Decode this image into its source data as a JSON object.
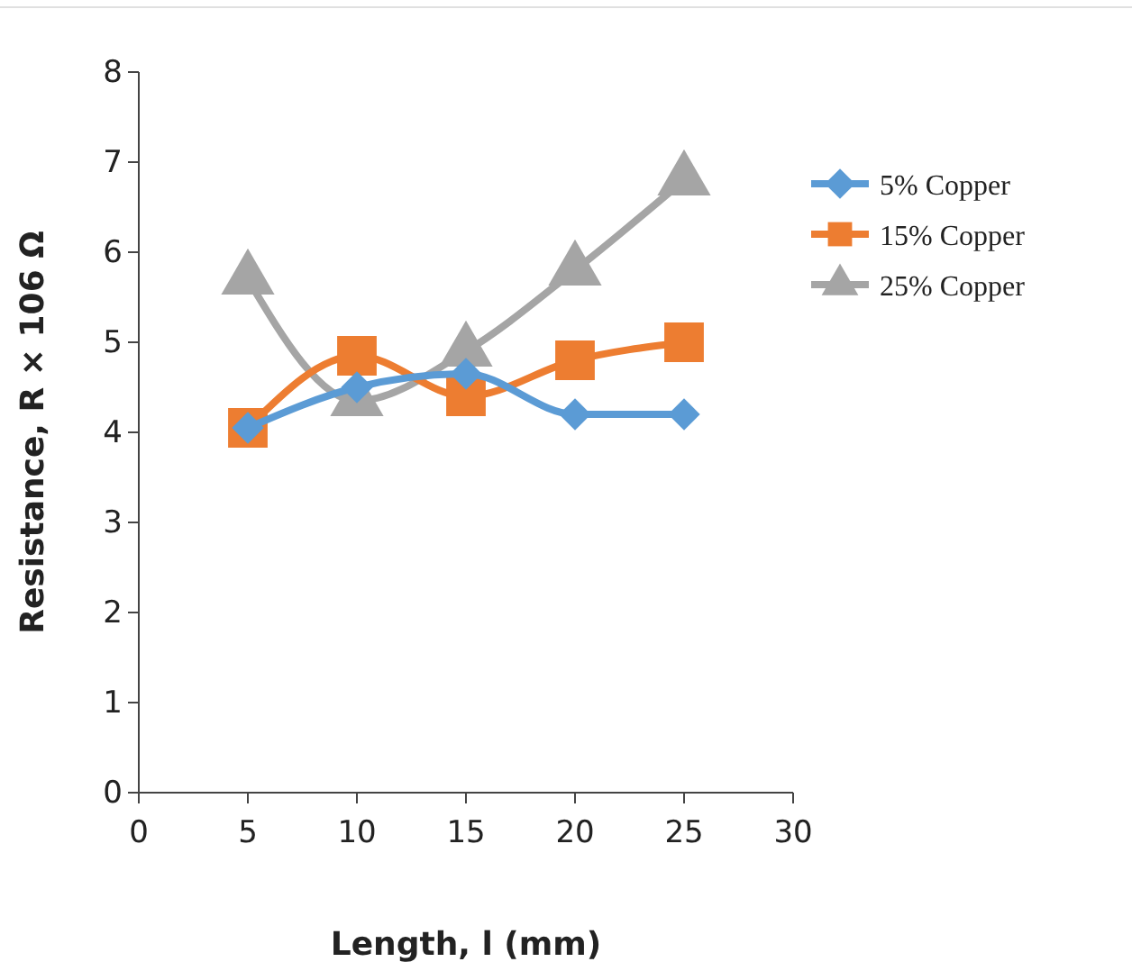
{
  "chart_data": {
    "type": "line",
    "xlabel": "Length, l (mm)",
    "ylabel": "Resistance, R × 106 Ω",
    "x": [
      5,
      10,
      15,
      20,
      25
    ],
    "series": [
      {
        "name": "5% Copper",
        "color": "#5b9bd5",
        "marker": "diamond",
        "values": [
          4.05,
          4.5,
          4.65,
          4.2,
          4.2
        ]
      },
      {
        "name": "15% Copper",
        "color": "#ed7d31",
        "marker": "square",
        "values": [
          4.05,
          4.85,
          4.4,
          4.8,
          5.0
        ]
      },
      {
        "name": "25% Copper",
        "color": "#a5a5a5",
        "marker": "triangle",
        "values": [
          5.7,
          4.35,
          4.9,
          5.8,
          6.8
        ]
      }
    ],
    "xlim": [
      0,
      30
    ],
    "xticks": [
      0,
      5,
      10,
      15,
      20,
      25,
      30
    ],
    "ylim": [
      0,
      8
    ],
    "yticks": [
      0,
      1,
      2,
      3,
      4,
      5,
      6,
      7,
      8
    ],
    "grid": false,
    "legend": "top right"
  }
}
